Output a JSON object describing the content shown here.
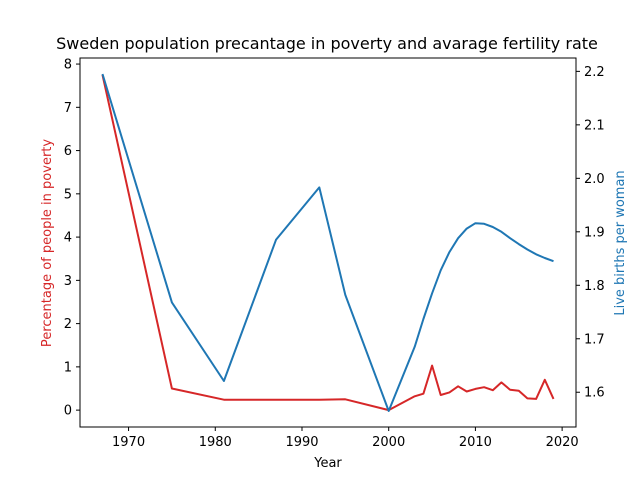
{
  "chart_data": {
    "type": "line",
    "title": "Sweden population precantage in poverty and avarage fertility rate",
    "xlabel": "Year",
    "ylabel_left": "Percentage of people in poverty",
    "ylabel_right": "Live births per woman",
    "xlim": [
      1964.4,
      2021.6
    ],
    "ylim_left": [
      -0.39,
      8.14
    ],
    "ylim_right": [
      1.535,
      2.225
    ],
    "x_ticks": [
      1970,
      1980,
      1990,
      2000,
      2010,
      2020
    ],
    "y_ticks_left": [
      0,
      1,
      2,
      3,
      4,
      5,
      6,
      7,
      8
    ],
    "y_ticks_right": [
      1.6,
      1.7,
      1.8,
      1.9,
      2.0,
      2.1,
      2.2
    ],
    "x_tick_labels": [
      "1970",
      "1980",
      "1990",
      "2000",
      "2010",
      "2020"
    ],
    "y_tick_labels_left": [
      "0",
      "1",
      "2",
      "3",
      "4",
      "5",
      "6",
      "7",
      "8"
    ],
    "y_tick_labels_right": [
      "1.6",
      "1.7",
      "1.8",
      "1.9",
      "2.0",
      "2.1",
      "2.2"
    ],
    "colors": {
      "left": "#d62728",
      "right": "#1f77b4"
    },
    "grid": false,
    "series": [
      {
        "axis": "left",
        "x": [
          1967,
          1975,
          1981,
          1987,
          1992,
          1995,
          2000,
          2003,
          2004,
          2005,
          2006,
          2007,
          2008,
          2009,
          2010,
          2011,
          2012,
          2013,
          2014,
          2015,
          2016,
          2017,
          2018,
          2019
        ],
        "values": [
          7.75,
          0.5,
          0.24,
          0.24,
          0.24,
          0.25,
          0.0,
          0.32,
          0.38,
          1.03,
          0.35,
          0.41,
          0.55,
          0.43,
          0.49,
          0.53,
          0.46,
          0.64,
          0.47,
          0.45,
          0.27,
          0.26,
          0.7,
          0.26
        ]
      },
      {
        "axis": "right",
        "x": [
          1967,
          1975,
          1981,
          1987,
          1992,
          1995,
          2000,
          2003,
          2004,
          2005,
          2006,
          2007,
          2008,
          2009,
          2010,
          2011,
          2012,
          2013,
          2014,
          2015,
          2016,
          2017,
          2018,
          2019
        ],
        "values": [
          2.195,
          1.768,
          1.621,
          1.885,
          1.983,
          1.782,
          1.565,
          1.685,
          1.737,
          1.785,
          1.828,
          1.862,
          1.888,
          1.906,
          1.916,
          1.915,
          1.909,
          1.9,
          1.888,
          1.877,
          1.867,
          1.858,
          1.851,
          1.845
        ]
      }
    ]
  }
}
